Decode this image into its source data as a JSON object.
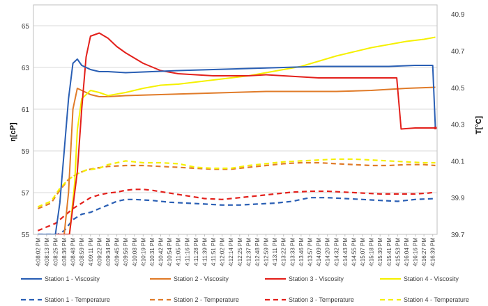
{
  "chart_data": {
    "type": "line",
    "title": "",
    "ylabel_left": "η[cP]",
    "ylabel_right": "T[°C]",
    "ylim_left": [
      55,
      66
    ],
    "ylim_right": [
      39.7,
      40.95
    ],
    "yticks_left": [
      55,
      57,
      59,
      61,
      63,
      65
    ],
    "yticks_right": [
      39.7,
      39.9,
      40.1,
      40.3,
      40.5,
      40.7,
      40.9
    ],
    "grid": true,
    "legend_position": "bottom",
    "x_tick_labels": [
      "4:08:02 PM",
      "4:08:13 PM",
      "4:08:25 PM",
      "4:08:36 PM",
      "4:08:48 PM",
      "4:08:59 PM",
      "4:09:11 PM",
      "4:09:22 PM",
      "4:09:34 PM",
      "4:09:45 PM",
      "4:09:56 PM",
      "4:10:08 PM",
      "4:10:19 PM",
      "4:10:31 PM",
      "4:10:42 PM",
      "4:10:54 PM",
      "4:11:05 PM",
      "4:11:16 PM",
      "4:11:28 PM",
      "4:11:39 PM",
      "4:11:51 PM",
      "4:12:02 PM",
      "4:12:14 PM",
      "4:12:25 PM",
      "4:12:37 PM",
      "4:12:48 PM",
      "4:12:59 PM",
      "4:13:11 PM",
      "4:13:22 PM",
      "4:13:33 PM",
      "4:13:46 PM",
      "4:13:57 PM",
      "4:14:09 PM",
      "4:14:20 PM",
      "4:14:32 PM",
      "4:14:43 PM",
      "4:14:55 PM",
      "4:15:07 PM",
      "4:15:18 PM",
      "4:15:30 PM",
      "4:15:41 PM",
      "4:15:53 PM",
      "4:16:04 PM",
      "4:16:16 PM",
      "4:16:27 PM",
      "4:16:39 PM"
    ],
    "series": [
      {
        "name": "Station 1 - Viscosity",
        "axis": "left",
        "color": "#2a5fb4",
        "dash": "solid",
        "x": [
          0,
          2,
          2.5,
          3,
          3.5,
          4,
          4.5,
          5,
          6,
          7,
          8,
          10,
          13,
          16,
          20,
          24,
          28,
          32,
          36,
          40,
          43,
          45,
          45.3
        ],
        "y": [
          55,
          55,
          56.5,
          59,
          61.5,
          63.2,
          63.4,
          63.1,
          62.9,
          62.8,
          62.8,
          62.75,
          62.8,
          62.85,
          62.9,
          62.95,
          63,
          63.05,
          63.05,
          63.05,
          63.1,
          63.1,
          60.1
        ]
      },
      {
        "name": "Station 2 - Viscosity",
        "axis": "left",
        "color": "#e07b29",
        "dash": "solid",
        "x": [
          0,
          3,
          3.5,
          4,
          4.5,
          5,
          6,
          7,
          8,
          10,
          14,
          18,
          22,
          26,
          30,
          34,
          38,
          42,
          45.3
        ],
        "y": [
          55,
          55,
          57,
          61,
          62,
          61.9,
          61.7,
          61.6,
          61.6,
          61.65,
          61.7,
          61.75,
          61.8,
          61.85,
          61.85,
          61.85,
          61.9,
          62,
          62.05
        ]
      },
      {
        "name": "Station 3 - Viscosity",
        "axis": "left",
        "color": "#e3201b",
        "dash": "solid",
        "x": [
          0,
          3.6,
          4.5,
          5,
          5.5,
          6,
          7,
          8,
          9,
          10,
          12,
          14,
          16,
          18,
          20,
          22,
          24,
          26,
          28,
          30,
          32,
          34,
          36,
          38,
          40,
          40.9,
          41.4,
          43,
          45.3
        ],
        "y": [
          55,
          55,
          58,
          61,
          63.5,
          64.5,
          64.65,
          64.4,
          64,
          63.7,
          63.2,
          62.85,
          62.7,
          62.65,
          62.6,
          62.6,
          62.6,
          62.65,
          62.6,
          62.55,
          62.5,
          62.5,
          62.5,
          62.5,
          62.5,
          62.5,
          60.05,
          60.1,
          60.1
        ]
      },
      {
        "name": "Station 4 - Viscosity",
        "axis": "left",
        "color": "#f5f000",
        "dash": "solid",
        "x": [
          0,
          3.6,
          4.2,
          4.5,
          5,
          6,
          7,
          8,
          10,
          12,
          14,
          16,
          18,
          20,
          22,
          24,
          26,
          28,
          30,
          32,
          34,
          36,
          38,
          40,
          42,
          44,
          45.3
        ],
        "y": [
          55,
          55,
          57.5,
          60,
          61.5,
          61.9,
          61.8,
          61.65,
          61.8,
          62,
          62.15,
          62.2,
          62.3,
          62.4,
          62.5,
          62.6,
          62.75,
          62.9,
          63.05,
          63.3,
          63.55,
          63.75,
          63.95,
          64.1,
          64.25,
          64.35,
          64.45
        ]
      },
      {
        "name": "Station 1 - Temperature",
        "axis": "right",
        "color": "#2a5fb4",
        "dash": "dashed",
        "x": [
          0,
          1.5,
          2.3,
          3,
          4,
          5,
          6,
          7,
          8,
          9,
          10,
          11,
          13,
          15,
          17,
          19,
          21,
          23,
          25,
          27,
          29,
          31,
          33,
          35,
          37,
          39,
          41,
          43,
          45.3
        ],
        "y": [
          39.7,
          39.7,
          39.7,
          39.72,
          39.78,
          39.81,
          39.82,
          39.84,
          39.86,
          39.88,
          39.89,
          39.89,
          39.885,
          39.875,
          39.87,
          39.865,
          39.86,
          39.86,
          39.865,
          39.87,
          39.88,
          39.9,
          39.9,
          39.895,
          39.89,
          39.885,
          39.88,
          39.89,
          39.895
        ]
      },
      {
        "name": "Station 2 - Temperature",
        "axis": "right",
        "color": "#e07b29",
        "dash": "dashed",
        "x": [
          0,
          1.5,
          2.5,
          3.5,
          4.5,
          5.5,
          6.5,
          8,
          10,
          12,
          14,
          16,
          18,
          20,
          22,
          24,
          26,
          28,
          30,
          32,
          34,
          36,
          38,
          40,
          42,
          44,
          45.3
        ],
        "y": [
          39.84,
          39.87,
          39.94,
          40,
          40.03,
          40.05,
          40.06,
          40.07,
          40.075,
          40.075,
          40.07,
          40.065,
          40.06,
          40.055,
          40.055,
          40.065,
          40.075,
          40.085,
          40.09,
          40.09,
          40.085,
          40.08,
          40.075,
          40.075,
          40.08,
          40.08,
          40.075
        ]
      },
      {
        "name": "Station 3 - Temperature",
        "axis": "right",
        "color": "#e3201b",
        "dash": "dashed",
        "x": [
          0,
          1,
          2,
          3,
          4,
          5,
          6,
          7,
          8,
          9,
          10,
          11,
          12,
          13,
          15,
          17,
          19,
          21,
          23,
          25,
          27,
          29,
          31,
          33,
          35,
          37,
          39,
          41,
          43,
          44.5,
          45.3
        ],
        "y": [
          39.72,
          39.74,
          39.76,
          39.8,
          39.84,
          39.87,
          39.9,
          39.915,
          39.925,
          39.93,
          39.94,
          39.945,
          39.945,
          39.94,
          39.925,
          39.91,
          39.895,
          39.89,
          39.9,
          39.91,
          39.92,
          39.93,
          39.935,
          39.935,
          39.93,
          39.925,
          39.92,
          39.92,
          39.92,
          39.925,
          39.93
        ]
      },
      {
        "name": "Station 4 - Temperature",
        "axis": "right",
        "color": "#f5f000",
        "dash": "dashed",
        "x": [
          0,
          1.5,
          2.5,
          3.5,
          4.5,
          5.5,
          7,
          8,
          9,
          10,
          11,
          12,
          14,
          16,
          18,
          20,
          22,
          24,
          26,
          28,
          30,
          32,
          34,
          36,
          38,
          40,
          42,
          44,
          45.3
        ],
        "y": [
          39.85,
          39.88,
          39.95,
          40,
          40.03,
          40.05,
          40.06,
          40.08,
          40.09,
          40.1,
          40.095,
          40.09,
          40.09,
          40.085,
          40.065,
          40.06,
          40.06,
          40.075,
          40.085,
          40.095,
          40.1,
          40.105,
          40.11,
          40.11,
          40.105,
          40.1,
          40.095,
          40.09,
          40.09
        ]
      }
    ]
  }
}
